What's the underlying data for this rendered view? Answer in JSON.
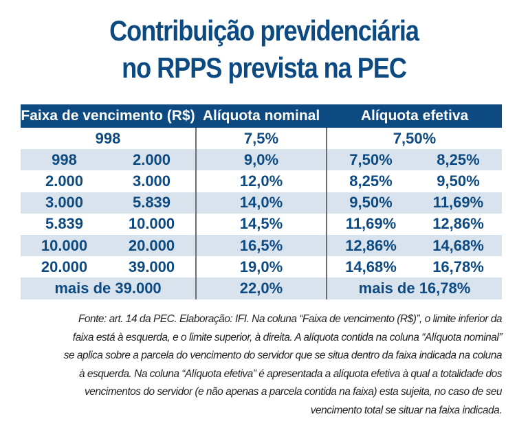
{
  "title": {
    "line1": "Contribuição previdenciária",
    "line2": "no RPPS prevista na PEC"
  },
  "colors": {
    "header_bg": "#0d4a82",
    "text_blue": "#0d4a82",
    "row_alt": "#d8e3ed"
  },
  "table": {
    "headers": [
      "Faixa de vencimento (R$)",
      "Alíquota nominal",
      "Alíquota efetiva"
    ],
    "rows": [
      {
        "faixa": "998",
        "nominal": "7,5%",
        "efetiva": "7,50%"
      },
      {
        "faixa_min": "998",
        "faixa_max": "2.000",
        "nominal": "9,0%",
        "efetiva_min": "7,50%",
        "efetiva_max": "8,25%"
      },
      {
        "faixa_min": "2.000",
        "faixa_max": "3.000",
        "nominal": "12,0%",
        "efetiva_min": "8,25%",
        "efetiva_max": "9,50%"
      },
      {
        "faixa_min": "3.000",
        "faixa_max": "5.839",
        "nominal": "14,0%",
        "efetiva_min": "9,50%",
        "efetiva_max": "11,69%"
      },
      {
        "faixa_min": "5.839",
        "faixa_max": "10.000",
        "nominal": "14,5%",
        "efetiva_min": "11,69%",
        "efetiva_max": "12,86%"
      },
      {
        "faixa_min": "10.000",
        "faixa_max": "20.000",
        "nominal": "16,5%",
        "efetiva_min": "12,86%",
        "efetiva_max": "14,68%"
      },
      {
        "faixa_min": "20.000",
        "faixa_max": "39.000",
        "nominal": "19,0%",
        "efetiva_min": "14,68%",
        "efetiva_max": "16,78%"
      },
      {
        "faixa": "mais de 39.000",
        "nominal": "22,0%",
        "efetiva": "mais de 16,78%"
      }
    ]
  },
  "footnote": {
    "lines": [
      "Fonte: art. 14 da PEC. Elaboração: IFI. Na coluna “Faixa de vencimento (R$)”, o limite inferior da",
      "faixa está à esquerda, e o limite superior, à direita. A alíquota contida na coluna “Alíquota nominal”",
      "se aplica sobre a parcela do vencimento do servidor que se situa dentro da faixa indicada na coluna",
      "à esquerda. Na coluna “Alíquota efetiva” é apresentada a alíquota efetiva à qual a totalidade dos",
      "vencimentos do servidor (e não apenas a parcela contida na faixa) esta sujeita, no caso de seu",
      "vencimento total se situar na faixa indicada."
    ]
  }
}
